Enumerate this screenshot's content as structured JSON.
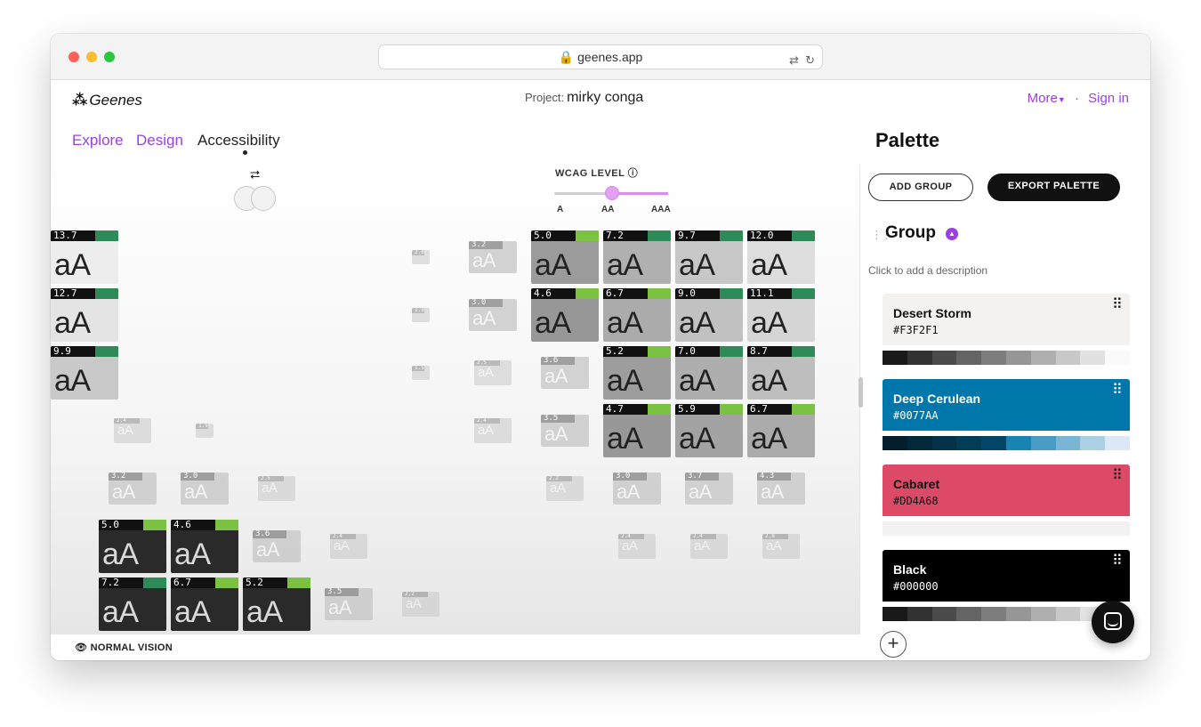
{
  "browser": {
    "url": "geenes.app"
  },
  "header": {
    "logo": "Geenes",
    "project_label": "Project:",
    "project_name": "mirky conga",
    "more": "More",
    "sep": "·",
    "sign_in": "Sign in"
  },
  "nav": {
    "explore": "Explore",
    "design": "Design",
    "accessibility": "Accessibility"
  },
  "controls": {
    "wcag_label": "WCAG LEVEL",
    "levels": [
      "A",
      "AA",
      "AAA"
    ],
    "selected_level": "AA"
  },
  "matrix": {
    "cells": [
      {
        "r": 0,
        "c": 2,
        "v": "2.0"
      },
      {
        "r": 0,
        "c": 3,
        "v": "3.2"
      },
      {
        "r": 0,
        "c": 4,
        "v": "5.0"
      },
      {
        "r": 0,
        "c": 5,
        "v": "7.2"
      },
      {
        "r": 0,
        "c": 6,
        "v": "9.7"
      },
      {
        "r": 0,
        "c": 7,
        "v": "12.0"
      },
      {
        "r": 0,
        "c": 8,
        "v": "13.7"
      },
      {
        "r": 1,
        "c": 2,
        "v": "1.9"
      },
      {
        "r": 1,
        "c": 3,
        "v": "3.0"
      },
      {
        "r": 1,
        "c": 4,
        "v": "4.6"
      },
      {
        "r": 1,
        "c": 5,
        "v": "6.7"
      },
      {
        "r": 1,
        "c": 6,
        "v": "9.0"
      },
      {
        "r": 1,
        "c": 7,
        "v": "11.1"
      },
      {
        "r": 1,
        "c": 8,
        "v": "12.7"
      },
      {
        "r": 2,
        "c": 2,
        "v": "1.5"
      },
      {
        "r": 2,
        "c": 3,
        "v": "2.5"
      },
      {
        "r": 2,
        "c": 4,
        "v": "3.6"
      },
      {
        "r": 2,
        "c": 5,
        "v": "5.2"
      },
      {
        "r": 2,
        "c": 6,
        "v": "7.0"
      },
      {
        "r": 2,
        "c": 7,
        "v": "8.7"
      },
      {
        "r": 2,
        "c": 8,
        "v": "9.9"
      },
      {
        "r": 3,
        "c": 0,
        "v": "2.4"
      },
      {
        "r": 3,
        "c": 1,
        "v": "1.9"
      },
      {
        "r": 3,
        "c": 4,
        "v": "2.4"
      },
      {
        "r": 3,
        "c": 5,
        "v": "3.5"
      },
      {
        "r": 3,
        "c": 6,
        "v": "4.7"
      },
      {
        "r": 3,
        "c": 7,
        "v": "5.9"
      },
      {
        "r": 3,
        "c": 8,
        "v": "6.7"
      },
      {
        "r": 4,
        "c": 0,
        "v": "3.2"
      },
      {
        "r": 4,
        "c": 1,
        "v": "3.0"
      },
      {
        "r": 4,
        "c": 2,
        "v": "2.5"
      },
      {
        "r": 4,
        "c": 5,
        "v": "2.2"
      },
      {
        "r": 4,
        "c": 6,
        "v": "3.0"
      },
      {
        "r": 4,
        "c": 7,
        "v": "3.7"
      },
      {
        "r": 4,
        "c": 8,
        "v": "4.3"
      },
      {
        "r": 5,
        "c": 0,
        "v": "5.0"
      },
      {
        "r": 5,
        "c": 1,
        "v": "4.6"
      },
      {
        "r": 5,
        "c": 2,
        "v": "3.6"
      },
      {
        "r": 5,
        "c": 3,
        "v": "2.4"
      },
      {
        "r": 5,
        "c": 6,
        "v": "2.4"
      },
      {
        "r": 5,
        "c": 7,
        "v": "2.4"
      },
      {
        "r": 5,
        "c": 8,
        "v": "2.8"
      },
      {
        "r": 6,
        "c": 0,
        "v": "7.2"
      },
      {
        "r": 6,
        "c": 1,
        "v": "6.7"
      },
      {
        "r": 6,
        "c": 2,
        "v": "5.2"
      },
      {
        "r": 6,
        "c": 3,
        "v": "3.5"
      },
      {
        "r": 6,
        "c": 4,
        "v": "2.2"
      }
    ],
    "sample_text": "aA",
    "pass_color": "#2e8b57",
    "aa_color": "#7cc242"
  },
  "vision": {
    "label": "NORMAL VISION"
  },
  "palette": {
    "title": "Palette",
    "add_group": "ADD GROUP",
    "export": "EXPORT PALETTE",
    "group_name": "Group",
    "group_desc": "Click to add a description",
    "colors": [
      {
        "name": "Desert Storm",
        "hex": "#F3F2F1",
        "bg": "#f3f2f1",
        "fg": "#111111"
      },
      {
        "name": "Deep Cerulean",
        "hex": "#0077AA",
        "bg": "#0077aa",
        "fg": "#ffffff"
      },
      {
        "name": "Cabaret",
        "hex": "#DD4A68",
        "bg": "#dd4a68",
        "fg": "#111111"
      },
      {
        "name": "Black",
        "hex": "#000000",
        "bg": "#000000",
        "fg": "#ffffff"
      }
    ]
  }
}
